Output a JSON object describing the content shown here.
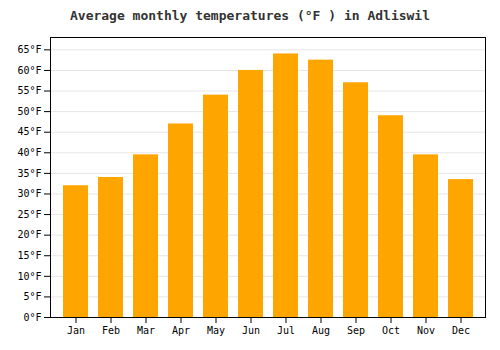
{
  "chart_data": {
    "type": "bar",
    "title": "Average monthly temperatures (°F ) in Adliswil",
    "categories": [
      "Jan",
      "Feb",
      "Mar",
      "Apr",
      "May",
      "Jun",
      "Jul",
      "Aug",
      "Sep",
      "Oct",
      "Nov",
      "Dec"
    ],
    "values": [
      32,
      34,
      39.5,
      47,
      54,
      60,
      64,
      62.5,
      57,
      49,
      39.5,
      33.5
    ],
    "color": "#FFA500",
    "ylim": [
      0,
      68
    ],
    "yticks": [
      {
        "value": 0,
        "label": "0°F"
      },
      {
        "value": 5,
        "label": "5°F"
      },
      {
        "value": 10,
        "label": "10°F"
      },
      {
        "value": 15,
        "label": "15°F"
      },
      {
        "value": 20,
        "label": "20°F"
      },
      {
        "value": 25,
        "label": "25°F"
      },
      {
        "value": 30,
        "label": "30°F"
      },
      {
        "value": 35,
        "label": "35°F"
      },
      {
        "value": 40,
        "label": "40°F"
      },
      {
        "value": 45,
        "label": "45°F"
      },
      {
        "value": 50,
        "label": "50°F"
      },
      {
        "value": 55,
        "label": "55°F"
      },
      {
        "value": 60,
        "label": "60°F"
      },
      {
        "value": 65,
        "label": "65°F"
      }
    ],
    "grid": true
  }
}
